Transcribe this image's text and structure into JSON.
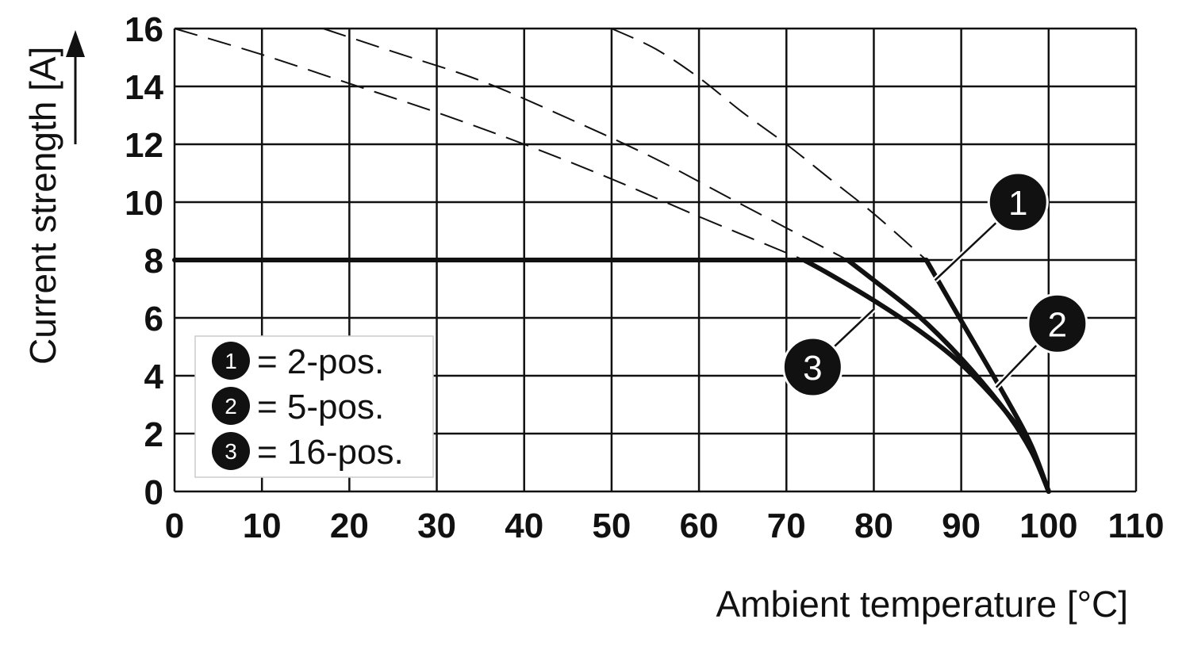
{
  "chart_data": {
    "type": "line",
    "title": "",
    "xlabel": "Ambient temperature [°C]",
    "ylabel": "Current strength [A]",
    "xlim": [
      0,
      110
    ],
    "ylim": [
      0,
      16
    ],
    "x_ticks": [
      "0",
      "10",
      "20",
      "30",
      "40",
      "50",
      "60",
      "70",
      "80",
      "90",
      "100",
      "110"
    ],
    "y_ticks": [
      "0",
      "2",
      "4",
      "6",
      "8",
      "10",
      "12",
      "14",
      "16"
    ],
    "grid": true,
    "legend_position": "bottom-left",
    "legend": [
      {
        "marker": "1",
        "label": "= 2-pos."
      },
      {
        "marker": "2",
        "label": "= 5-pos."
      },
      {
        "marker": "3",
        "label": "= 16-pos."
      }
    ],
    "limit_line": {
      "x": [
        0,
        86
      ],
      "y": [
        8,
        8
      ]
    },
    "series": [
      {
        "marker": "1",
        "solid": {
          "x": [
            86,
            90,
            95,
            98,
            100
          ],
          "y": [
            8,
            5.9,
            3.3,
            1.6,
            0
          ]
        },
        "dashed": {
          "x": [
            50,
            55,
            60,
            65,
            70,
            75,
            80,
            86
          ],
          "y": [
            16,
            15.3,
            14.3,
            13.1,
            12.0,
            10.8,
            9.6,
            8
          ]
        }
      },
      {
        "marker": "2",
        "solid": {
          "x": [
            77,
            80,
            85,
            90,
            95,
            98,
            100
          ],
          "y": [
            8,
            7.3,
            6.1,
            4.6,
            2.8,
            1.4,
            0
          ]
        },
        "dashed": {
          "x": [
            17,
            25,
            35,
            45,
            55,
            65,
            77
          ],
          "y": [
            16,
            15.2,
            14.2,
            12.9,
            11.5,
            9.9,
            8
          ]
        }
      },
      {
        "marker": "3",
        "solid": {
          "x": [
            72,
            75,
            80,
            85,
            90,
            95,
            98,
            100
          ],
          "y": [
            8,
            7.5,
            6.6,
            5.6,
            4.4,
            2.8,
            1.5,
            0
          ]
        },
        "dashed": {
          "x": [
            0,
            10,
            20,
            30,
            40,
            50,
            60,
            72
          ],
          "y": [
            16,
            15.1,
            14.1,
            13.1,
            12.0,
            10.8,
            9.5,
            8
          ]
        }
      }
    ],
    "annotations": [
      {
        "marker": "1",
        "point": [
          87,
          7.3
        ],
        "label_at": [
          96.5,
          10
        ]
      },
      {
        "marker": "2",
        "point": [
          94,
          3.6
        ],
        "label_at": [
          101,
          5.8
        ]
      },
      {
        "marker": "3",
        "point": [
          80,
          6.3
        ],
        "label_at": [
          73,
          4.3
        ]
      }
    ]
  }
}
